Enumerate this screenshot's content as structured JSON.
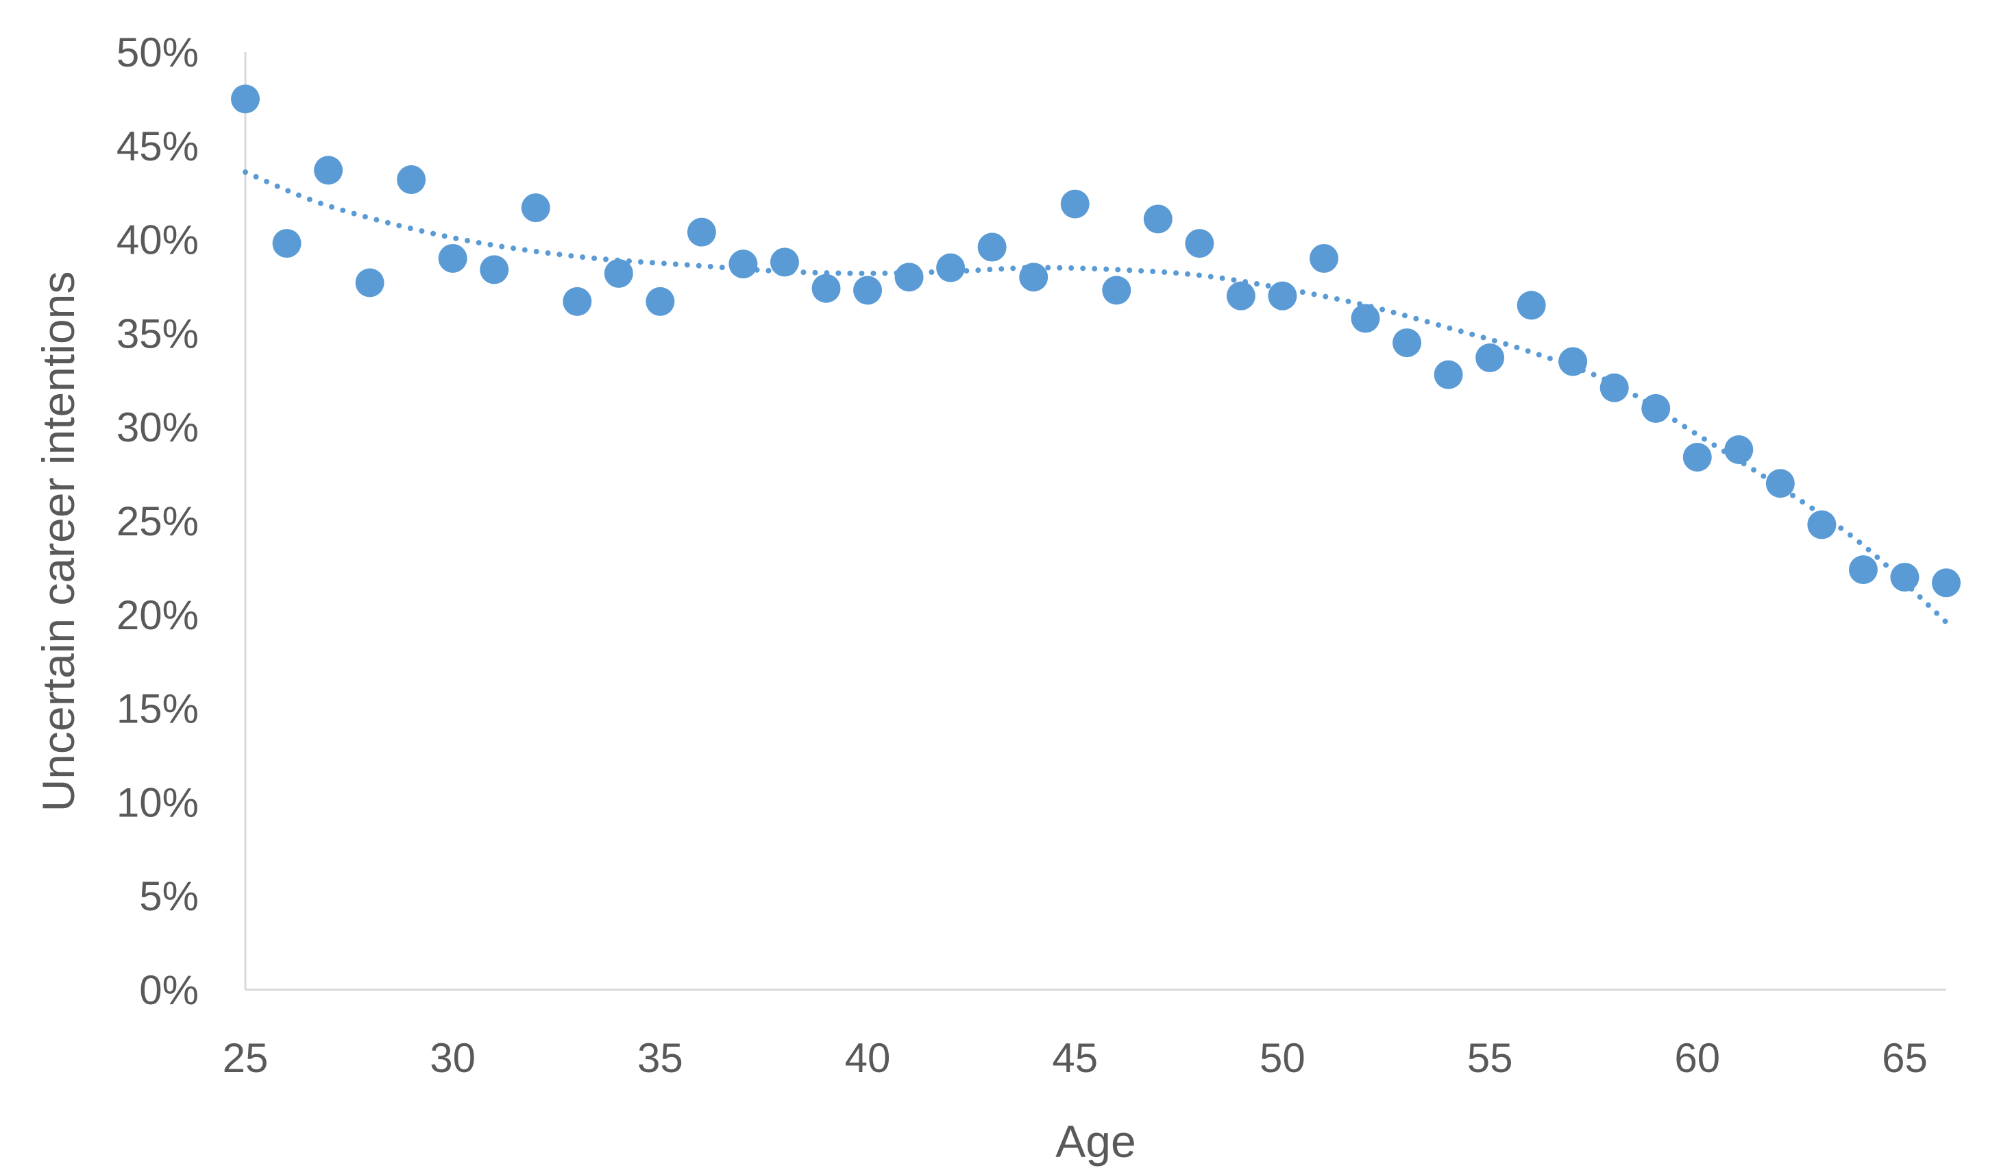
{
  "chart_data": {
    "type": "scatter",
    "title": "",
    "xlabel": "Age",
    "ylabel": "Uncertain career intentions",
    "xlim": [
      25,
      66
    ],
    "ylim": [
      0,
      0.5
    ],
    "x_ticks": [
      25,
      30,
      35,
      40,
      45,
      50,
      55,
      60,
      65
    ],
    "x_tick_labels": [
      "25",
      "30",
      "35",
      "40",
      "45",
      "50",
      "55",
      "60",
      "65"
    ],
    "y_ticks": [
      0,
      0.05,
      0.1,
      0.15,
      0.2,
      0.25,
      0.3,
      0.35,
      0.4,
      0.45,
      0.5
    ],
    "y_tick_labels": [
      "0%",
      "5%",
      "10%",
      "15%",
      "20%",
      "25%",
      "30%",
      "35%",
      "40%",
      "45%",
      "50%"
    ],
    "grid": false,
    "legend": "none",
    "marker_color": "#5b9bd5",
    "trendline": {
      "style": "dotted polynomial",
      "color": "#5b9bd5",
      "x": [
        25,
        27,
        30,
        33,
        36,
        38,
        40,
        42,
        44,
        46,
        48,
        50,
        52,
        54,
        56,
        58,
        60,
        62,
        64,
        66
      ],
      "y": [
        0.436,
        0.418,
        0.401,
        0.391,
        0.386,
        0.383,
        0.382,
        0.383,
        0.385,
        0.384,
        0.381,
        0.374,
        0.365,
        0.353,
        0.34,
        0.323,
        0.296,
        0.268,
        0.237,
        0.196
      ]
    },
    "points": {
      "x": [
        25,
        26,
        27,
        28,
        29,
        30,
        31,
        32,
        33,
        34,
        35,
        36,
        37,
        38,
        39,
        40,
        41,
        42,
        43,
        44,
        45,
        46,
        47,
        48,
        49,
        50,
        51,
        52,
        53,
        54,
        55,
        56,
        57,
        58,
        59,
        60,
        61,
        62,
        63,
        64,
        65,
        66
      ],
      "y": [
        0.475,
        0.398,
        0.437,
        0.377,
        0.432,
        0.39,
        0.384,
        0.417,
        0.367,
        0.382,
        0.367,
        0.404,
        0.387,
        0.388,
        0.374,
        0.373,
        0.38,
        0.385,
        0.396,
        0.38,
        0.419,
        0.373,
        0.411,
        0.398,
        0.37,
        0.37,
        0.39,
        0.358,
        0.345,
        0.328,
        0.337,
        0.365,
        0.335,
        0.321,
        0.31,
        0.284,
        0.288,
        0.27,
        0.248,
        0.224,
        0.22,
        0.217
      ]
    }
  }
}
